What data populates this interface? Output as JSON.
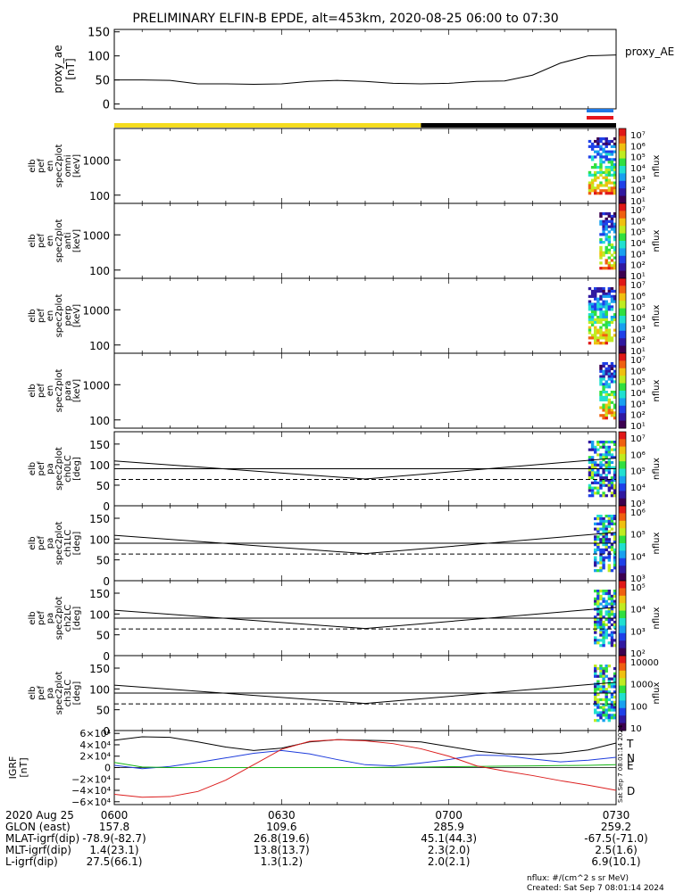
{
  "title": "PRELIMINARY ELFIN-B EPDE, alt=453km, 2020-08-25 06:00 to 07:30",
  "colors": {
    "yellow": "#f5dc1e",
    "black": "#000000",
    "blue_bar": "#1e78e6",
    "red_bar": "#e6141e",
    "line_T": "#000000",
    "line_N": "#1e3cdc",
    "line_E": "#14b414",
    "line_D": "#dc1e1e"
  },
  "chart_data": [
    {
      "type": "line",
      "name": "proxy_ae",
      "ylabel": "proxy_ae [nT]",
      "legend": "proxy_AE",
      "ylim": [
        -10,
        155
      ],
      "yticks": [
        "150",
        "100",
        "50",
        "0"
      ],
      "x_minutes": [
        0,
        5,
        10,
        15,
        20,
        25,
        30,
        35,
        40,
        45,
        50,
        55,
        60,
        65,
        70,
        75,
        80,
        85,
        90
      ],
      "values": [
        50,
        50,
        49,
        42,
        42,
        41,
        42,
        47,
        49,
        47,
        43,
        42,
        43,
        47,
        48,
        60,
        85,
        100,
        102
      ]
    },
    {
      "type": "heatmap",
      "name": "elb_pef_en_spec2plot_omni",
      "ylabel": [
        "elb",
        "pef",
        "en",
        "spec2plot",
        "omni",
        "[keV]"
      ],
      "yticks": [
        "1000",
        "100"
      ],
      "zlabel": "nflux",
      "zticks": [
        "10⁷",
        "10⁶",
        "10⁵",
        "10⁴",
        "10³",
        "10²",
        "10¹"
      ],
      "data_x_minutes": [
        85,
        90
      ]
    },
    {
      "type": "heatmap",
      "name": "elb_pef_en_spec2plot_anti",
      "ylabel": [
        "elb",
        "pef",
        "en",
        "spec2plot",
        "anti",
        "[keV]"
      ],
      "yticks": [
        "1000",
        "100"
      ],
      "zlabel": "nflux",
      "zticks": [
        "10⁷",
        "10⁶",
        "10⁵",
        "10⁴",
        "10³",
        "10²",
        "10¹"
      ],
      "data_x_minutes": [
        87,
        90
      ]
    },
    {
      "type": "heatmap",
      "name": "elb_pef_en_spec2plot_perp",
      "ylabel": [
        "elb",
        "pef",
        "en",
        "spec2plot",
        "perp",
        "[keV]"
      ],
      "yticks": [
        "1000",
        "100"
      ],
      "zlabel": "nflux",
      "zticks": [
        "10⁷",
        "10⁶",
        "10⁵",
        "10⁴",
        "10³",
        "10²",
        "10¹"
      ],
      "data_x_minutes": [
        85,
        90
      ]
    },
    {
      "type": "heatmap",
      "name": "elb_pef_en_spec2plot_para",
      "ylabel": [
        "elb",
        "pef",
        "en",
        "spec2plot",
        "para",
        "[keV]"
      ],
      "yticks": [
        "1000",
        "100"
      ],
      "zlabel": "nflux",
      "zticks": [
        "10⁷",
        "10⁶",
        "10⁵",
        "10⁴",
        "10³",
        "10²",
        "10¹"
      ],
      "data_x_minutes": [
        87,
        90
      ]
    },
    {
      "type": "heatmap",
      "name": "elb_pef_pa_spec2plot_ch0LC",
      "ylabel": [
        "elb",
        "pef",
        "pa",
        "spec2plot",
        "ch0LC",
        "[deg]"
      ],
      "yticks": [
        "150",
        "100",
        "50",
        "0"
      ],
      "ylim": [
        0,
        180
      ],
      "zlabel": "nflux",
      "zticks": [
        "10⁷",
        "10⁶",
        "10⁵",
        "10⁴",
        "10³"
      ],
      "lc_solid": [
        [
          0,
          109
        ],
        [
          45,
          65
        ],
        [
          90,
          116
        ]
      ],
      "ref_solid": 90,
      "ref_dashed": 64,
      "data_x_minutes": [
        85,
        90
      ]
    },
    {
      "type": "heatmap",
      "name": "elb_pef_pa_spec2plot_ch1LC",
      "ylabel": [
        "elb",
        "pef",
        "pa",
        "spec2plot",
        "ch1LC",
        "[deg]"
      ],
      "yticks": [
        "150",
        "100",
        "50",
        "0"
      ],
      "ylim": [
        0,
        180
      ],
      "zlabel": "nflux",
      "zticks": [
        "10⁶",
        "10⁵",
        "10⁴",
        "10³"
      ],
      "lc_solid": [
        [
          0,
          109
        ],
        [
          45,
          65
        ],
        [
          90,
          116
        ]
      ],
      "ref_solid": 90,
      "ref_dashed": 64,
      "data_x_minutes": [
        86,
        90
      ]
    },
    {
      "type": "heatmap",
      "name": "elb_pef_pa_spec2plot_ch2LC",
      "ylabel": [
        "elb",
        "pef",
        "pa",
        "spec2plot",
        "ch2LC",
        "[deg]"
      ],
      "yticks": [
        "150",
        "100",
        "50",
        "0"
      ],
      "ylim": [
        0,
        180
      ],
      "zlabel": "nflux",
      "zticks": [
        "10⁵",
        "10⁴",
        "10³",
        "10²"
      ],
      "lc_solid": [
        [
          0,
          109
        ],
        [
          45,
          65
        ],
        [
          90,
          116
        ]
      ],
      "ref_solid": 90,
      "ref_dashed": 64,
      "data_x_minutes": [
        86,
        90
      ]
    },
    {
      "type": "heatmap",
      "name": "elb_pef_pa_spec2plot_ch3LC",
      "ylabel": [
        "elb",
        "pef",
        "pa",
        "spec2plot",
        "ch3LC",
        "[deg]"
      ],
      "yticks": [
        "150",
        "100",
        "50",
        "0"
      ],
      "ylim": [
        0,
        180
      ],
      "zlabel": "nflux",
      "zticks": [
        "10000",
        "1000",
        "100",
        "10"
      ],
      "lc_solid": [
        [
          0,
          109
        ],
        [
          45,
          65
        ],
        [
          90,
          116
        ]
      ],
      "ref_solid": 90,
      "ref_dashed": 64,
      "data_x_minutes": [
        86,
        90
      ]
    },
    {
      "type": "line",
      "name": "IGRF",
      "ylabel": "IGRF [nT]",
      "ylim": [
        -65000,
        65000
      ],
      "yticks": [
        "6×10⁴",
        "4×10⁴",
        "2×10⁴",
        "0",
        "−2×10⁴",
        "−4×10⁴",
        "−6×10⁴"
      ],
      "series_labels": [
        "T",
        "N",
        "E",
        "D"
      ],
      "x_minutes": [
        0,
        5,
        10,
        15,
        20,
        25,
        30,
        35,
        40,
        45,
        50,
        55,
        60,
        65,
        70,
        75,
        80,
        85,
        90
      ],
      "series": [
        {
          "name": "T",
          "values": [
            48000,
            54000,
            53000,
            45000,
            36000,
            30000,
            34000,
            45000,
            49000,
            48000,
            47000,
            45000,
            37000,
            29000,
            24000,
            23000,
            25000,
            31000,
            43000
          ]
        },
        {
          "name": "N",
          "values": [
            4000,
            -2000,
            2000,
            9000,
            17000,
            25000,
            30000,
            24000,
            14000,
            5000,
            3000,
            8000,
            14000,
            22000,
            21000,
            15000,
            10000,
            13000,
            18000
          ]
        },
        {
          "name": "E",
          "values": [
            9000,
            1000,
            0,
            0,
            0,
            0,
            0,
            0,
            0,
            0,
            500,
            1000,
            1500,
            2000,
            2500,
            3000,
            3500,
            4000,
            5000
          ]
        },
        {
          "name": "D",
          "values": [
            -47000,
            -52000,
            -51000,
            -42000,
            -22000,
            5000,
            32000,
            46000,
            49000,
            47000,
            42000,
            33000,
            20000,
            3000,
            -6000,
            -14000,
            -23000,
            -31000,
            -40000
          ]
        }
      ]
    }
  ],
  "x_axis": {
    "ticks": [
      "0600",
      "0630",
      "0700",
      "0730"
    ],
    "tick_minutes": [
      0,
      30,
      60,
      90
    ]
  },
  "ephemeris": {
    "rows": [
      {
        "label": "2020 Aug 25",
        "values": [
          "",
          "",
          "",
          ""
        ]
      },
      {
        "label": "GLON (east)",
        "values": [
          "157.8",
          "109.6",
          "285.9",
          "259.2"
        ]
      },
      {
        "label": "MLAT-igrf(dip)",
        "values": [
          "-78.9(-82.7)",
          "26.8(19.6)",
          "45.1(44.3)",
          "-67.5(-71.0)"
        ]
      },
      {
        "label": "MLT-igrf(dip)",
        "values": [
          "1.4(23.1)",
          "13.8(13.7)",
          "2.3(2.0)",
          "2.5(1.6)"
        ]
      },
      {
        "label": "L-igrf(dip)",
        "values": [
          "27.5(66.1)",
          "1.3(1.2)",
          "2.0(2.1)",
          "6.9(10.1)"
        ]
      }
    ]
  },
  "footer": {
    "units": "nflux: #/(cm^2 s sr MeV)",
    "created": "Created: Sat Sep  7 08:01:14 2024",
    "side_stamp": "Sat Sep  7 08:01:14 2024"
  }
}
